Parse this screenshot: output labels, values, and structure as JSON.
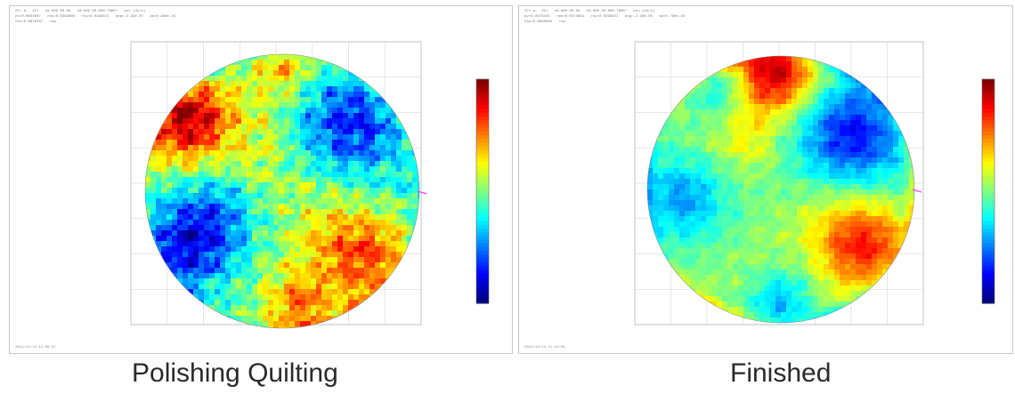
{
  "captions": {
    "left": "Polishing Quilting",
    "right": "Finished"
  },
  "chart_data": [
    {
      "type": "heatmap",
      "title": "",
      "xlabel": "",
      "ylabel": "",
      "shape": "circular-aperture",
      "colormap": "jet",
      "colorbar": true,
      "grid": true,
      "xlim": [
        -8,
        8
      ],
      "ylim": [
        -8,
        8
      ],
      "features": [
        {
          "region": "upper-left rim",
          "level": "high"
        },
        {
          "region": "upper-right",
          "level": "low"
        },
        {
          "region": "left",
          "level": "low"
        },
        {
          "region": "lower-right",
          "level": "high"
        },
        {
          "region": "center",
          "level": "mid",
          "pattern": "quilted hexagonal tool marks"
        }
      ]
    },
    {
      "type": "heatmap",
      "title": "",
      "xlabel": "",
      "ylabel": "",
      "shape": "circular-aperture",
      "colormap": "jet",
      "colorbar": true,
      "grid": true,
      "xlim": [
        -8,
        8
      ],
      "ylim": [
        -8,
        8
      ],
      "features": [
        {
          "region": "top",
          "level": "high"
        },
        {
          "region": "upper-right",
          "level": "low"
        },
        {
          "region": "left",
          "level": "low"
        },
        {
          "region": "lower-right",
          "level": "high"
        },
        {
          "region": "center",
          "level": "mid",
          "pattern": "smooth"
        }
      ]
    }
  ],
  "colors": {
    "jet": [
      "#00007f",
      "#0000ff",
      "#007fff",
      "#00ffff",
      "#7fff7f",
      "#ffff00",
      "#ff7f00",
      "#ff0000",
      "#7f0000"
    ],
    "panel_border": "#c8c8c8",
    "grid": "#d4d4d4",
    "caption": "#2a2a2a"
  }
}
